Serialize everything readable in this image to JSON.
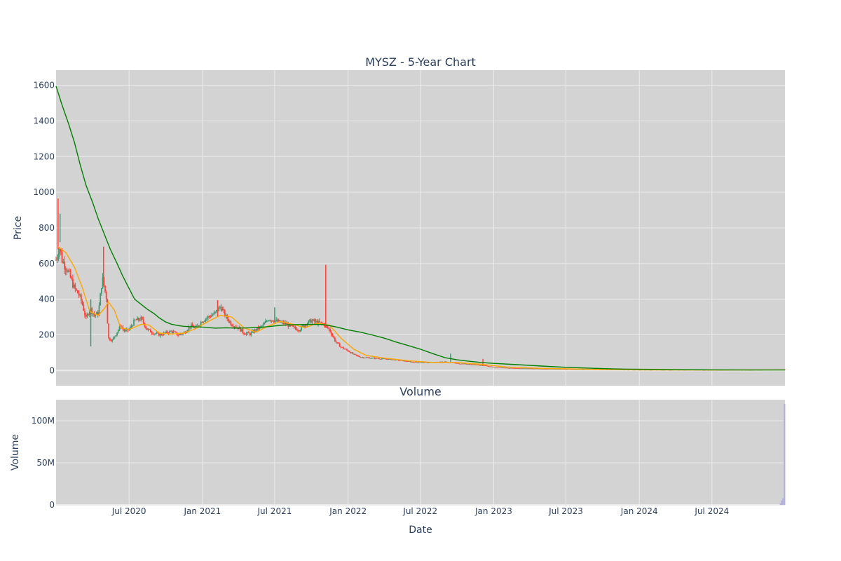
{
  "chart_data": [
    {
      "type": "candlestick",
      "title": "MYSZ - 5-Year Chart",
      "xlabel": "",
      "ylabel": "Price",
      "ylim": [
        -85,
        1685
      ],
      "yticks": [
        0,
        200,
        400,
        600,
        800,
        1000,
        1200,
        1400,
        1600
      ],
      "xlim": [
        "2019-12-31",
        "2024-12-31"
      ],
      "xticks": [
        {
          "date": "2020-07-01",
          "label": "Jul 2020"
        },
        {
          "date": "2021-01-01",
          "label": "Jan 2021"
        },
        {
          "date": "2021-07-01",
          "label": "Jul 2021"
        },
        {
          "date": "2022-01-01",
          "label": "Jan 2022"
        },
        {
          "date": "2022-07-01",
          "label": "Jul 2022"
        },
        {
          "date": "2023-01-01",
          "label": "Jan 2023"
        },
        {
          "date": "2023-07-01",
          "label": "Jul 2023"
        },
        {
          "date": "2024-01-01",
          "label": "Jan 2024"
        },
        {
          "date": "2024-07-01",
          "label": "Jul 2024"
        }
      ],
      "grid": true,
      "colors": {
        "up": "#3d9970",
        "down": "#ff4136",
        "ma_short": "#ffa500",
        "ma_long": "#008000",
        "background": "#d3d3d3",
        "grid": "#ebebeb"
      },
      "price_path": [
        [
          "2019-12-31",
          620
        ],
        [
          "2020-01-08",
          700
        ],
        [
          "2020-01-15",
          620
        ],
        [
          "2020-01-25",
          580
        ],
        [
          "2020-02-05",
          520
        ],
        [
          "2020-02-15",
          460
        ],
        [
          "2020-02-25",
          430
        ],
        [
          "2020-03-05",
          380
        ],
        [
          "2020-03-15",
          290
        ],
        [
          "2020-03-25",
          350
        ],
        [
          "2020-04-05",
          310
        ],
        [
          "2020-04-15",
          320
        ],
        [
          "2020-04-25",
          520
        ],
        [
          "2020-05-05",
          410
        ],
        [
          "2020-05-10",
          180
        ],
        [
          "2020-05-20",
          170
        ],
        [
          "2020-05-30",
          210
        ],
        [
          "2020-06-10",
          250
        ],
        [
          "2020-06-20",
          220
        ],
        [
          "2020-07-01",
          230
        ],
        [
          "2020-07-15",
          280
        ],
        [
          "2020-08-01",
          290
        ],
        [
          "2020-08-15",
          230
        ],
        [
          "2020-09-01",
          210
        ],
        [
          "2020-09-15",
          200
        ],
        [
          "2020-10-01",
          210
        ],
        [
          "2020-10-15",
          220
        ],
        [
          "2020-11-01",
          200
        ],
        [
          "2020-11-15",
          210
        ],
        [
          "2020-12-01",
          250
        ],
        [
          "2020-12-15",
          240
        ],
        [
          "2021-01-01",
          280
        ],
        [
          "2021-01-15",
          300
        ],
        [
          "2021-02-01",
          320
        ],
        [
          "2021-02-15",
          360
        ],
        [
          "2021-03-01",
          300
        ],
        [
          "2021-03-15",
          260
        ],
        [
          "2021-04-01",
          240
        ],
        [
          "2021-04-15",
          210
        ],
        [
          "2021-05-01",
          205
        ],
        [
          "2021-05-15",
          230
        ],
        [
          "2021-06-01",
          250
        ],
        [
          "2021-06-15",
          290
        ],
        [
          "2021-07-01",
          280
        ],
        [
          "2021-07-15",
          270
        ],
        [
          "2021-08-01",
          260
        ],
        [
          "2021-08-15",
          240
        ],
        [
          "2021-09-01",
          230
        ],
        [
          "2021-09-15",
          260
        ],
        [
          "2021-10-01",
          280
        ],
        [
          "2021-10-15",
          270
        ],
        [
          "2021-11-01",
          260
        ],
        [
          "2021-11-15",
          230
        ],
        [
          "2021-12-01",
          160
        ],
        [
          "2021-12-15",
          130
        ],
        [
          "2022-01-01",
          110
        ],
        [
          "2022-01-15",
          90
        ],
        [
          "2022-02-01",
          75
        ],
        [
          "2022-03-01",
          70
        ],
        [
          "2022-04-01",
          65
        ],
        [
          "2022-05-01",
          60
        ],
        [
          "2022-06-01",
          50
        ],
        [
          "2022-07-01",
          45
        ],
        [
          "2022-08-01",
          45
        ],
        [
          "2022-09-01",
          50
        ],
        [
          "2022-10-01",
          40
        ],
        [
          "2022-11-01",
          35
        ],
        [
          "2022-12-01",
          30
        ],
        [
          "2023-01-01",
          20
        ],
        [
          "2023-02-01",
          15
        ],
        [
          "2023-03-01",
          12
        ],
        [
          "2023-05-01",
          10
        ],
        [
          "2023-07-01",
          8
        ],
        [
          "2023-09-01",
          6
        ],
        [
          "2024-01-01",
          4
        ],
        [
          "2024-07-01",
          3
        ],
        [
          "2024-12-31",
          5
        ]
      ],
      "spikes": [
        {
          "date": "2020-01-05",
          "high": 965,
          "low": 680
        },
        {
          "date": "2020-01-10",
          "high": 880,
          "low": 720
        },
        {
          "date": "2020-04-28",
          "high": 695,
          "low": 480
        },
        {
          "date": "2020-03-27",
          "high": 400,
          "low": 135
        },
        {
          "date": "2021-02-08",
          "high": 395,
          "low": 300
        },
        {
          "date": "2021-07-01",
          "high": 355,
          "low": 270
        },
        {
          "date": "2021-11-06",
          "high": 593,
          "low": 240
        },
        {
          "date": "2022-09-15",
          "high": 95,
          "low": 45
        },
        {
          "date": "2022-12-05",
          "high": 65,
          "low": 25
        }
      ],
      "ma_short": [
        [
          "2020-01-05",
          695
        ],
        [
          "2020-01-25",
          660
        ],
        [
          "2020-02-15",
          580
        ],
        [
          "2020-03-05",
          470
        ],
        [
          "2020-03-25",
          330
        ],
        [
          "2020-04-15",
          310
        ],
        [
          "2020-05-01",
          350
        ],
        [
          "2020-05-10",
          385
        ],
        [
          "2020-05-25",
          340
        ],
        [
          "2020-06-10",
          240
        ],
        [
          "2020-07-01",
          230
        ],
        [
          "2020-08-01",
          260
        ],
        [
          "2020-08-20",
          255
        ],
        [
          "2020-09-15",
          210
        ],
        [
          "2020-10-15",
          205
        ],
        [
          "2020-11-15",
          210
        ],
        [
          "2020-12-15",
          235
        ],
        [
          "2021-01-15",
          275
        ],
        [
          "2021-02-15",
          310
        ],
        [
          "2021-03-15",
          300
        ],
        [
          "2021-04-15",
          240
        ],
        [
          "2021-05-15",
          215
        ],
        [
          "2021-06-15",
          250
        ],
        [
          "2021-07-15",
          275
        ],
        [
          "2021-08-15",
          260
        ],
        [
          "2021-09-15",
          240
        ],
        [
          "2021-10-15",
          265
        ],
        [
          "2021-11-15",
          255
        ],
        [
          "2021-12-15",
          180
        ],
        [
          "2022-01-15",
          120
        ],
        [
          "2022-02-15",
          85
        ],
        [
          "2022-04-01",
          70
        ],
        [
          "2022-06-01",
          55
        ],
        [
          "2022-08-01",
          45
        ],
        [
          "2022-10-01",
          45
        ],
        [
          "2022-12-01",
          35
        ],
        [
          "2023-02-01",
          20
        ],
        [
          "2023-05-01",
          12
        ],
        [
          "2023-09-01",
          7
        ],
        [
          "2024-01-01",
          4
        ],
        [
          "2024-07-01",
          3
        ],
        [
          "2024-12-31",
          4
        ]
      ],
      "ma_long": [
        [
          "2019-12-31",
          1595
        ],
        [
          "2020-01-15",
          1490
        ],
        [
          "2020-02-01",
          1380
        ],
        [
          "2020-02-15",
          1280
        ],
        [
          "2020-03-01",
          1150
        ],
        [
          "2020-03-15",
          1040
        ],
        [
          "2020-04-01",
          940
        ],
        [
          "2020-04-15",
          850
        ],
        [
          "2020-05-01",
          760
        ],
        [
          "2020-05-15",
          680
        ],
        [
          "2020-06-01",
          600
        ],
        [
          "2020-06-15",
          530
        ],
        [
          "2020-07-01",
          460
        ],
        [
          "2020-07-15",
          400
        ],
        [
          "2020-08-01",
          370
        ],
        [
          "2020-08-15",
          345
        ],
        [
          "2020-09-01",
          320
        ],
        [
          "2020-09-15",
          295
        ],
        [
          "2020-10-01",
          272
        ],
        [
          "2020-10-15",
          260
        ],
        [
          "2020-11-01",
          252
        ],
        [
          "2020-11-15",
          248
        ],
        [
          "2020-12-01",
          246
        ],
        [
          "2021-01-01",
          244
        ],
        [
          "2021-02-01",
          238
        ],
        [
          "2021-03-01",
          240
        ],
        [
          "2021-04-01",
          238
        ],
        [
          "2021-05-01",
          240
        ],
        [
          "2021-06-01",
          243
        ],
        [
          "2021-07-01",
          250
        ],
        [
          "2021-08-01",
          256
        ],
        [
          "2021-09-01",
          258
        ],
        [
          "2021-10-01",
          259
        ],
        [
          "2021-11-01",
          258
        ],
        [
          "2021-12-01",
          245
        ],
        [
          "2022-01-01",
          228
        ],
        [
          "2022-02-01",
          215
        ],
        [
          "2022-03-01",
          200
        ],
        [
          "2022-04-01",
          182
        ],
        [
          "2022-05-01",
          160
        ],
        [
          "2022-06-01",
          140
        ],
        [
          "2022-07-01",
          120
        ],
        [
          "2022-08-01",
          95
        ],
        [
          "2022-09-01",
          72
        ],
        [
          "2022-10-01",
          60
        ],
        [
          "2022-11-01",
          52
        ],
        [
          "2022-12-01",
          45
        ],
        [
          "2023-01-01",
          40
        ],
        [
          "2023-03-01",
          33
        ],
        [
          "2023-05-01",
          25
        ],
        [
          "2023-07-01",
          18
        ],
        [
          "2023-09-01",
          13
        ],
        [
          "2023-11-01",
          9
        ],
        [
          "2024-01-01",
          7
        ],
        [
          "2024-04-01",
          5
        ],
        [
          "2024-07-01",
          4
        ],
        [
          "2024-10-01",
          3
        ],
        [
          "2024-12-31",
          3
        ]
      ]
    },
    {
      "type": "bar",
      "title": "Volume",
      "xlabel": "Date",
      "ylabel": "Volume",
      "ylim": [
        0,
        125000000
      ],
      "yticks": [
        {
          "value": 0,
          "label": "0"
        },
        {
          "value": 50000000,
          "label": "50M"
        },
        {
          "value": 100000000,
          "label": "100M"
        }
      ],
      "grid": true,
      "x": [
        "2024-12-20",
        "2024-12-23",
        "2024-12-26",
        "2024-12-30"
      ],
      "values": [
        2000000,
        5000000,
        8000000,
        120000000
      ],
      "colors": {
        "bar": "#b0b0e0",
        "background": "#d3d3d3",
        "grid": "#ebebeb"
      }
    }
  ]
}
